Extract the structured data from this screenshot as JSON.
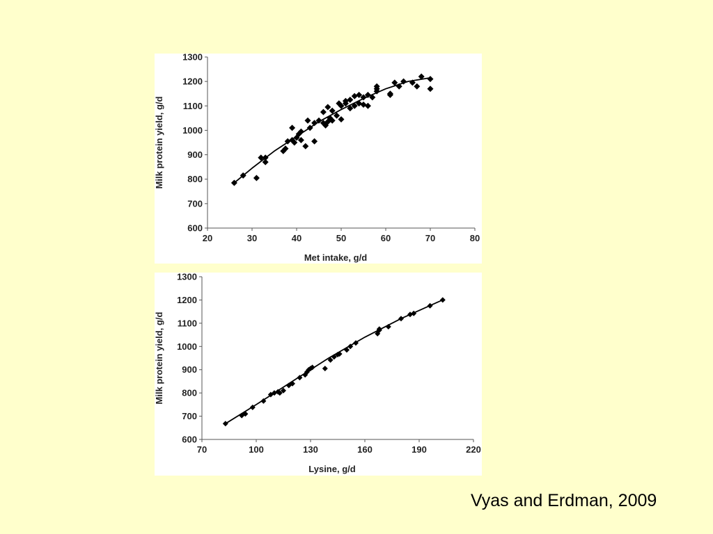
{
  "citation": "Vyas and Erdman, 2009",
  "chart_data": [
    {
      "type": "scatter",
      "xlabel": "Met intake, g/d",
      "ylabel": "Milk protein yield, g/d",
      "xlim": [
        20,
        80
      ],
      "ylim": [
        600,
        1300
      ],
      "xticks": [
        "20",
        "30",
        "40",
        "50",
        "60",
        "70",
        "80"
      ],
      "yticks": [
        "600",
        "700",
        "800",
        "900",
        "1000",
        "1100",
        "1200",
        "1300"
      ],
      "grid": false,
      "legend": "none",
      "marker_color": "#000000",
      "trend_line": {
        "x": [
          26,
          30,
          35,
          40,
          45,
          50,
          55,
          60,
          65,
          70
        ],
        "y": [
          785,
          845,
          915,
          975,
          1035,
          1085,
          1130,
          1170,
          1200,
          1215
        ]
      },
      "points": {
        "x": [
          26,
          28,
          31,
          32,
          33,
          33,
          37,
          37.5,
          38,
          39,
          39,
          39.5,
          40,
          40.5,
          41,
          41,
          42,
          42.5,
          43,
          44,
          44,
          45,
          46,
          46,
          46.5,
          47,
          47,
          47.5,
          48,
          48,
          49,
          49.5,
          50,
          50,
          51,
          51,
          52,
          52,
          53,
          53,
          54,
          54,
          55,
          55,
          56,
          56,
          57,
          58,
          58,
          58,
          61,
          61,
          62,
          63,
          64,
          66,
          67,
          68,
          70,
          70
        ],
        "y": [
          785,
          815,
          805,
          888,
          888,
          870,
          915,
          925,
          955,
          960,
          1010,
          950,
          970,
          985,
          995,
          960,
          935,
          1040,
          1010,
          955,
          1030,
          1040,
          1030,
          1075,
          1020,
          1035,
          1095,
          1050,
          1040,
          1080,
          1060,
          1110,
          1045,
          1100,
          1110,
          1120,
          1090,
          1125,
          1100,
          1140,
          1110,
          1145,
          1105,
          1135,
          1100,
          1145,
          1135,
          1170,
          1180,
          1160,
          1150,
          1145,
          1195,
          1180,
          1200,
          1195,
          1180,
          1220,
          1210,
          1170
        ]
      }
    },
    {
      "type": "scatter",
      "xlabel": "Lysine, g/d",
      "ylabel": "Milk protein yield, g/d",
      "xlim": [
        70,
        220
      ],
      "ylim": [
        600,
        1300
      ],
      "xticks": [
        "70",
        "100",
        "130",
        "160",
        "190",
        "220"
      ],
      "yticks": [
        "600",
        "700",
        "800",
        "900",
        "1000",
        "1100",
        "1200",
        "1300"
      ],
      "grid": false,
      "legend": "none",
      "marker_color": "#000000",
      "trend_line": {
        "x": [
          83,
          100,
          120,
          140,
          160,
          180,
          200,
          203
        ],
        "y": [
          668,
          750,
          850,
          950,
          1040,
          1120,
          1190,
          1200
        ]
      },
      "points": {
        "x": [
          83,
          92,
          94,
          98,
          104,
          108,
          110,
          112,
          113,
          115,
          118,
          120,
          124,
          127,
          128,
          129,
          130,
          131,
          138,
          141,
          143,
          145,
          146,
          150,
          152,
          155,
          167,
          168,
          168,
          173,
          180,
          185,
          187,
          196,
          203
        ],
        "y": [
          668,
          703,
          710,
          738,
          765,
          793,
          800,
          805,
          800,
          810,
          832,
          840,
          866,
          878,
          890,
          900,
          905,
          910,
          905,
          942,
          955,
          965,
          968,
          985,
          1000,
          1015,
          1055,
          1070,
          1075,
          1085,
          1120,
          1138,
          1142,
          1175,
          1200
        ]
      }
    }
  ]
}
